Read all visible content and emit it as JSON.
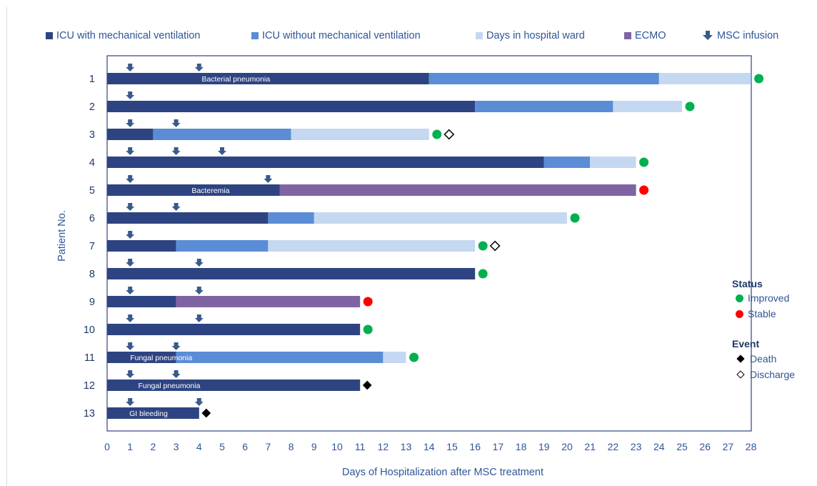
{
  "chart_data": {
    "type": "bar",
    "xlabel": "Days of Hospitalization after MSC treatment",
    "ylabel": "Patient No.",
    "xlim": [
      0,
      28
    ],
    "xticks": [
      "0",
      "1",
      "2",
      "3",
      "4",
      "5",
      "6",
      "7",
      "8",
      "9",
      "10",
      "11",
      "12",
      "13",
      "14",
      "15",
      "16",
      "17",
      "18",
      "19",
      "20",
      "21",
      "22",
      "23",
      "24",
      "25",
      "26",
      "27",
      "28"
    ],
    "legend": [
      {
        "key": "icu_mv",
        "label": "ICU with mechanical ventilation",
        "color": "#2e4482"
      },
      {
        "key": "icu_nomv",
        "label": "ICU without mechanical ventilation",
        "color": "#5b8dd6"
      },
      {
        "key": "ward",
        "label": "Days in hospital ward",
        "color": "#c5d8f1"
      },
      {
        "key": "ecmo",
        "label": "ECMO",
        "color": "#8064a2"
      },
      {
        "key": "msc",
        "label": "MSC infusion",
        "color": "#3a5a8c"
      }
    ],
    "status_legend": {
      "title": "Status",
      "items": [
        {
          "key": "improved",
          "label": "Improved",
          "color": "#00b050"
        },
        {
          "key": "stable",
          "label": "Stable",
          "color": "#ff0000"
        }
      ]
    },
    "event_legend": {
      "title": "Event",
      "items": [
        {
          "key": "death",
          "label": "Death"
        },
        {
          "key": "discharge",
          "label": "Discharge"
        }
      ]
    },
    "patients": [
      {
        "id": "1",
        "segments": [
          {
            "type": "icu_mv",
            "start": 0,
            "end": 14
          },
          {
            "type": "icu_nomv",
            "start": 14,
            "end": 24
          },
          {
            "type": "ward",
            "start": 24,
            "end": 28
          }
        ],
        "msc": [
          1,
          4
        ],
        "annotation": "Bacterial pneumonia",
        "status": "improved",
        "event": null
      },
      {
        "id": "2",
        "segments": [
          {
            "type": "icu_mv",
            "start": 0,
            "end": 16
          },
          {
            "type": "icu_nomv",
            "start": 16,
            "end": 22
          },
          {
            "type": "ward",
            "start": 22,
            "end": 25
          }
        ],
        "msc": [
          1
        ],
        "annotation": "",
        "status": "improved",
        "event": null
      },
      {
        "id": "3",
        "segments": [
          {
            "type": "icu_mv",
            "start": 0,
            "end": 2
          },
          {
            "type": "icu_nomv",
            "start": 2,
            "end": 8
          },
          {
            "type": "ward",
            "start": 8,
            "end": 14
          }
        ],
        "msc": [
          1,
          3
        ],
        "annotation": "",
        "status": "improved",
        "event": "discharge"
      },
      {
        "id": "4",
        "segments": [
          {
            "type": "icu_mv",
            "start": 0,
            "end": 19
          },
          {
            "type": "icu_nomv",
            "start": 19,
            "end": 21
          },
          {
            "type": "ward",
            "start": 21,
            "end": 23
          }
        ],
        "msc": [
          1,
          3,
          5
        ],
        "annotation": "",
        "status": "improved",
        "event": null
      },
      {
        "id": "5",
        "segments": [
          {
            "type": "icu_mv",
            "start": 0,
            "end": 7.5
          },
          {
            "type": "ecmo",
            "start": 7.5,
            "end": 23
          }
        ],
        "msc": [
          1,
          7
        ],
        "annotation": "Bacteremia",
        "status": "stable",
        "event": null
      },
      {
        "id": "6",
        "segments": [
          {
            "type": "icu_mv",
            "start": 0,
            "end": 7
          },
          {
            "type": "icu_nomv",
            "start": 7,
            "end": 9
          },
          {
            "type": "ward",
            "start": 9,
            "end": 20
          }
        ],
        "msc": [
          1,
          3
        ],
        "annotation": "",
        "status": "improved",
        "event": null
      },
      {
        "id": "7",
        "segments": [
          {
            "type": "icu_mv",
            "start": 0,
            "end": 3
          },
          {
            "type": "icu_nomv",
            "start": 3,
            "end": 7
          },
          {
            "type": "ward",
            "start": 7,
            "end": 16
          }
        ],
        "msc": [
          1
        ],
        "annotation": "",
        "status": "improved",
        "event": "discharge"
      },
      {
        "id": "8",
        "segments": [
          {
            "type": "icu_mv",
            "start": 0,
            "end": 16
          }
        ],
        "msc": [
          1,
          4
        ],
        "annotation": "",
        "status": "improved",
        "event": null
      },
      {
        "id": "9",
        "segments": [
          {
            "type": "icu_mv",
            "start": 0,
            "end": 3
          },
          {
            "type": "ecmo",
            "start": 3,
            "end": 11
          }
        ],
        "msc": [
          1,
          4
        ],
        "annotation": "",
        "status": "stable",
        "event": null
      },
      {
        "id": "10",
        "segments": [
          {
            "type": "icu_mv",
            "start": 0,
            "end": 11
          }
        ],
        "msc": [
          1,
          4
        ],
        "annotation": "",
        "status": "improved",
        "event": null
      },
      {
        "id": "11",
        "segments": [
          {
            "type": "icu_mv",
            "start": 0,
            "end": 3
          },
          {
            "type": "icu_nomv",
            "start": 3,
            "end": 12
          },
          {
            "type": "ward",
            "start": 12,
            "end": 13
          }
        ],
        "msc": [
          1,
          3
        ],
        "annotation": "Fungal pneumonia",
        "status": "improved",
        "event": null
      },
      {
        "id": "12",
        "segments": [
          {
            "type": "icu_mv",
            "start": 0,
            "end": 11
          }
        ],
        "msc": [
          1,
          3
        ],
        "annotation": "Fungal pneumonia",
        "status": null,
        "event": "death"
      },
      {
        "id": "13",
        "segments": [
          {
            "type": "icu_mv",
            "start": 0,
            "end": 4
          }
        ],
        "msc": [
          1,
          4
        ],
        "annotation": "GI bleeding",
        "status": null,
        "event": "death"
      }
    ]
  }
}
